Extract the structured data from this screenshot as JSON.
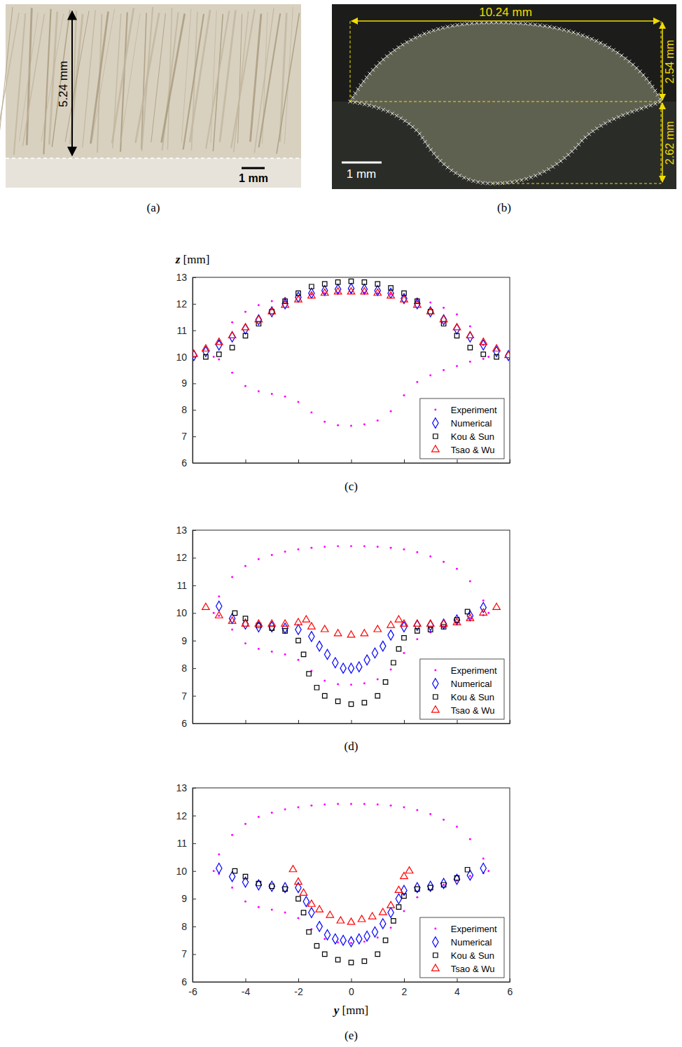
{
  "images": [
    {
      "caption": "(a)",
      "height_label": "5.24 mm",
      "scale_label": "1 mm"
    },
    {
      "caption": "(b)",
      "width_label": "10.24 mm",
      "upper_height_label": "2.54 mm",
      "lower_height_label": "2.62 mm",
      "scale_label": "1 mm"
    }
  ],
  "chart_data": [
    {
      "type": "scatter",
      "caption": "(c)",
      "ylabel": "z [mm]",
      "xlim": [
        -6,
        6
      ],
      "xticks": [
        -6,
        -4,
        -2,
        0,
        2,
        4,
        6
      ],
      "ylim": [
        6,
        13
      ],
      "yticks": [
        6,
        7,
        8,
        9,
        10,
        11,
        12,
        13
      ],
      "tick_labels": "y",
      "legend": "lower right",
      "series": [
        {
          "name": "Experiment",
          "color": "#ff00ff",
          "marker": "point",
          "x": [
            -5.2,
            -5,
            -4.5,
            -4,
            -3.5,
            -3,
            -2.5,
            -2,
            -1.5,
            -1,
            -0.5,
            0,
            0.5,
            1,
            1.5,
            2,
            2.5,
            3,
            3.5,
            4,
            4.5,
            5,
            5.2,
            5,
            4.5,
            4,
            3.5,
            3,
            2.5,
            2,
            1.5,
            1,
            0.5,
            0,
            -0.5,
            -1,
            -1.5,
            -2,
            -2.5,
            -3,
            -3.5,
            -4,
            -4.5,
            -5
          ],
          "values": [
            10.0,
            10.6,
            11.3,
            11.7,
            11.95,
            12.1,
            12.22,
            12.3,
            12.36,
            12.4,
            12.42,
            12.42,
            12.42,
            12.4,
            12.36,
            12.3,
            12.2,
            12.05,
            11.85,
            11.6,
            11.15,
            10.45,
            10.0,
            9.92,
            9.82,
            9.65,
            9.5,
            9.3,
            9.05,
            8.55,
            7.95,
            7.6,
            7.45,
            7.4,
            7.42,
            7.55,
            7.9,
            8.3,
            8.5,
            8.6,
            8.7,
            8.9,
            9.4,
            9.9
          ]
        },
        {
          "name": "Numerical",
          "color": "#0000ff",
          "marker": "diamond",
          "x": [
            -5.95,
            -5.5,
            -5,
            -4.5,
            -4,
            -3.5,
            -3,
            -2.5,
            -2,
            -1.5,
            -1,
            -0.5,
            0,
            0.5,
            1,
            1.5,
            2,
            2.5,
            3,
            3.5,
            4,
            4.5,
            5,
            5.5,
            5.95
          ],
          "values": [
            10.05,
            10.2,
            10.45,
            10.75,
            11.05,
            11.4,
            11.7,
            12.0,
            12.25,
            12.4,
            12.5,
            12.55,
            12.58,
            12.55,
            12.5,
            12.4,
            12.2,
            12.0,
            11.7,
            11.4,
            11.05,
            10.75,
            10.45,
            10.2,
            10.05
          ]
        },
        {
          "name": "Kou & Sun",
          "color": "#000000",
          "marker": "square",
          "x": [
            -5.5,
            -5,
            -4.5,
            -4,
            -3.5,
            -3,
            -2.5,
            -2,
            -1.5,
            -1,
            -0.5,
            0,
            0.5,
            1,
            1.5,
            2,
            2.5,
            3,
            3.5,
            4,
            4.5,
            5,
            5.5
          ],
          "values": [
            10.0,
            10.1,
            10.35,
            10.8,
            11.25,
            11.7,
            12.1,
            12.4,
            12.65,
            12.75,
            12.82,
            12.85,
            12.82,
            12.75,
            12.6,
            12.4,
            12.1,
            11.7,
            11.25,
            10.8,
            10.35,
            10.1,
            10.0
          ]
        },
        {
          "name": "Tsao & Wu",
          "color": "#ff0000",
          "marker": "triangle",
          "x": [
            -5.95,
            -5.5,
            -5,
            -4.5,
            -4,
            -3.5,
            -3,
            -2.5,
            -2,
            -1.5,
            -1,
            -0.5,
            0,
            0.5,
            1,
            1.5,
            2,
            2.5,
            3,
            3.5,
            4,
            4.5,
            5,
            5.5,
            5.95
          ],
          "values": [
            10.1,
            10.3,
            10.55,
            10.8,
            11.1,
            11.4,
            11.7,
            11.95,
            12.15,
            12.3,
            12.4,
            12.45,
            12.45,
            12.45,
            12.4,
            12.3,
            12.15,
            11.95,
            11.7,
            11.4,
            11.1,
            10.8,
            10.55,
            10.3,
            10.05
          ]
        }
      ]
    },
    {
      "type": "scatter",
      "caption": "(d)",
      "xlim": [
        -6,
        6
      ],
      "xticks": [
        -6,
        -4,
        -2,
        0,
        2,
        4,
        6
      ],
      "ylim": [
        6,
        13
      ],
      "yticks": [
        6,
        7,
        8,
        9,
        10,
        11,
        12,
        13
      ],
      "tick_labels": "y",
      "legend": "lower right",
      "series": [
        {
          "name": "Experiment",
          "color": "#ff00ff",
          "marker": "point",
          "x": [
            -5.2,
            -5,
            -4.5,
            -4,
            -3.5,
            -3,
            -2.5,
            -2,
            -1.5,
            -1,
            -0.5,
            0,
            0.5,
            1,
            1.5,
            2,
            2.5,
            3,
            3.5,
            4,
            4.5,
            5,
            5.2,
            5,
            4.5,
            4,
            3.5,
            3,
            2.5,
            2,
            1.5,
            1,
            0.5,
            0,
            -0.5,
            -1,
            -1.5,
            -2,
            -2.5,
            -3,
            -3.5,
            -4,
            -4.5,
            -5
          ],
          "values": [
            10.0,
            10.6,
            11.3,
            11.7,
            11.95,
            12.1,
            12.22,
            12.3,
            12.36,
            12.4,
            12.42,
            12.42,
            12.42,
            12.4,
            12.36,
            12.3,
            12.2,
            12.05,
            11.85,
            11.6,
            11.15,
            10.45,
            10.0,
            9.92,
            9.82,
            9.65,
            9.5,
            9.3,
            9.05,
            8.55,
            7.95,
            7.6,
            7.45,
            7.4,
            7.42,
            7.55,
            7.9,
            8.3,
            8.5,
            8.6,
            8.7,
            8.9,
            9.4,
            9.9
          ]
        },
        {
          "name": "Numerical",
          "color": "#0000ff",
          "marker": "diamond",
          "x": [
            -5,
            -4.5,
            -4,
            -3.5,
            -3,
            -2.5,
            -2,
            -1.5,
            -1.2,
            -0.9,
            -0.6,
            -0.3,
            0,
            0.3,
            0.6,
            0.9,
            1.2,
            1.5,
            2,
            2.5,
            3,
            3.5,
            4,
            4.5,
            5
          ],
          "values": [
            10.25,
            9.8,
            9.6,
            9.5,
            9.5,
            9.45,
            9.4,
            9.15,
            8.8,
            8.5,
            8.2,
            8.0,
            8.0,
            8.05,
            8.3,
            8.55,
            8.8,
            9.2,
            9.5,
            9.55,
            9.55,
            9.6,
            9.75,
            9.9,
            10.2
          ]
        },
        {
          "name": "Kou & Sun",
          "color": "#000000",
          "marker": "square",
          "x": [
            -4.4,
            -4,
            -3.5,
            -3,
            -2.5,
            -2,
            -1.8,
            -1.6,
            -1.3,
            -1,
            -0.5,
            0,
            0.5,
            1,
            1.3,
            1.6,
            1.8,
            2,
            2.5,
            3,
            3.5,
            4,
            4.4
          ],
          "values": [
            10.0,
            9.8,
            9.55,
            9.45,
            9.35,
            9.0,
            8.5,
            7.8,
            7.3,
            7.0,
            6.8,
            6.7,
            6.75,
            7.0,
            7.5,
            8.2,
            8.7,
            9.1,
            9.35,
            9.4,
            9.5,
            9.75,
            10.05
          ]
        },
        {
          "name": "Tsao & Wu",
          "color": "#ff0000",
          "marker": "triangle",
          "x": [
            -5.5,
            -5,
            -4.5,
            -4,
            -3.5,
            -3,
            -2.5,
            -2,
            -1.7,
            -1.5,
            -1,
            -0.5,
            0,
            0.5,
            1,
            1.5,
            1.8,
            2,
            2.5,
            3,
            3.5,
            4,
            4.5,
            5,
            5.5
          ],
          "values": [
            10.2,
            9.9,
            9.7,
            9.6,
            9.6,
            9.6,
            9.6,
            9.65,
            9.75,
            9.5,
            9.4,
            9.25,
            9.2,
            9.25,
            9.4,
            9.55,
            9.75,
            9.6,
            9.6,
            9.6,
            9.6,
            9.65,
            9.8,
            10.0,
            10.2
          ]
        }
      ]
    },
    {
      "type": "scatter",
      "caption": "(e)",
      "xlabel": "y [mm]",
      "xlim": [
        -6,
        6
      ],
      "xticks": [
        -6,
        -4,
        -2,
        0,
        2,
        4,
        6
      ],
      "ylim": [
        6,
        13
      ],
      "yticks": [
        6,
        7,
        8,
        9,
        10,
        11,
        12,
        13
      ],
      "legend": "lower right",
      "series": [
        {
          "name": "Experiment",
          "color": "#ff00ff",
          "marker": "point",
          "x": [
            -5.2,
            -5,
            -4.5,
            -4,
            -3.5,
            -3,
            -2.5,
            -2,
            -1.5,
            -1,
            -0.5,
            0,
            0.5,
            1,
            1.5,
            2,
            2.5,
            3,
            3.5,
            4,
            4.5,
            5,
            5.2,
            5,
            4.5,
            4,
            3.5,
            3,
            2.5,
            2,
            1.5,
            1,
            0.5,
            0,
            -0.5,
            -1,
            -1.5,
            -2,
            -2.5,
            -3,
            -3.5,
            -4,
            -4.5,
            -5
          ],
          "values": [
            10.0,
            10.6,
            11.3,
            11.7,
            11.95,
            12.1,
            12.22,
            12.3,
            12.36,
            12.4,
            12.42,
            12.42,
            12.42,
            12.4,
            12.36,
            12.3,
            12.2,
            12.05,
            11.85,
            11.6,
            11.15,
            10.45,
            10.0,
            9.92,
            9.82,
            9.65,
            9.5,
            9.3,
            9.05,
            8.55,
            7.95,
            7.6,
            7.45,
            7.4,
            7.42,
            7.55,
            7.9,
            8.3,
            8.5,
            8.6,
            8.7,
            8.9,
            9.4,
            9.9
          ]
        },
        {
          "name": "Numerical",
          "color": "#0000ff",
          "marker": "diamond",
          "x": [
            -5,
            -4.5,
            -4,
            -3.5,
            -3,
            -2.5,
            -2,
            -1.7,
            -1.5,
            -1.2,
            -0.9,
            -0.6,
            -0.3,
            0,
            0.3,
            0.6,
            0.9,
            1.2,
            1.5,
            1.8,
            2,
            2.5,
            3,
            3.5,
            4,
            4.5,
            5
          ],
          "values": [
            10.1,
            9.8,
            9.6,
            9.5,
            9.45,
            9.4,
            9.4,
            8.9,
            8.5,
            8.0,
            7.7,
            7.55,
            7.5,
            7.45,
            7.55,
            7.65,
            7.8,
            8.1,
            8.5,
            9.0,
            9.3,
            9.4,
            9.45,
            9.55,
            9.7,
            9.85,
            10.1
          ]
        },
        {
          "name": "Kou & Sun",
          "color": "#000000",
          "marker": "square",
          "x": [
            -4.4,
            -4,
            -3.5,
            -3,
            -2.5,
            -2,
            -1.8,
            -1.6,
            -1.3,
            -1,
            -0.5,
            0,
            0.5,
            1,
            1.3,
            1.6,
            1.8,
            2,
            2.5,
            3,
            3.5,
            4,
            4.4
          ],
          "values": [
            10.0,
            9.8,
            9.55,
            9.45,
            9.35,
            9.0,
            8.5,
            7.8,
            7.3,
            7.0,
            6.8,
            6.7,
            6.75,
            7.0,
            7.5,
            8.2,
            8.7,
            9.1,
            9.35,
            9.4,
            9.5,
            9.75,
            10.05
          ]
        },
        {
          "name": "Tsao & Wu",
          "color": "#ff0000",
          "marker": "triangle",
          "x": [
            -2.2,
            -2,
            -1.8,
            -1.5,
            -1.2,
            -0.8,
            -0.4,
            0,
            0.4,
            0.8,
            1.2,
            1.5,
            1.8,
            2,
            2.2
          ],
          "values": [
            10.05,
            9.6,
            9.2,
            8.8,
            8.6,
            8.4,
            8.2,
            8.15,
            8.25,
            8.35,
            8.5,
            8.75,
            9.3,
            9.8,
            10.0
          ]
        }
      ]
    }
  ]
}
